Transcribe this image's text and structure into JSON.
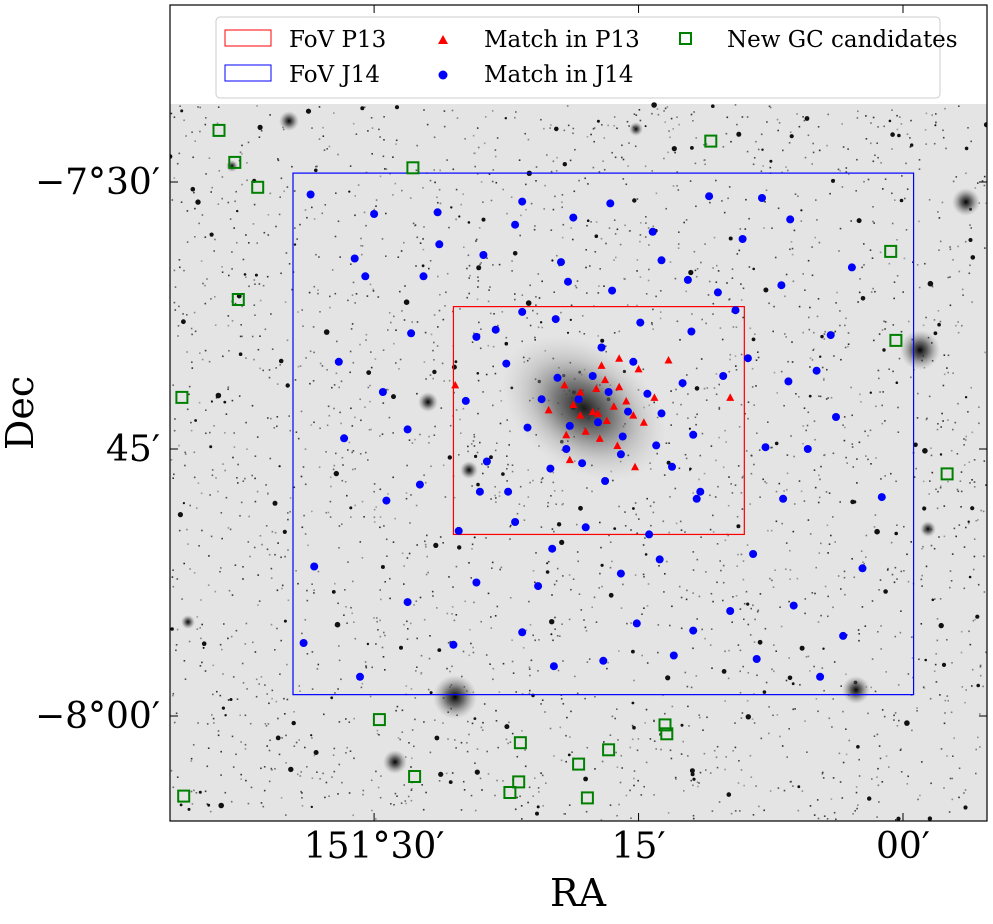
{
  "chart_data": {
    "type": "scatter",
    "title": "",
    "xlabel": "RA",
    "ylabel": "Dec",
    "x_axis": {
      "unit": "arcmin of RA",
      "inverted": true,
      "ticks": [
        {
          "value": 30,
          "label": "151°30′"
        },
        {
          "value": 15,
          "label": "15′"
        },
        {
          "value": 0,
          "label": "00′"
        }
      ]
    },
    "y_axis": {
      "unit": "arcmin of Dec",
      "ticks": [
        {
          "value": -30,
          "label": "−7°30′"
        },
        {
          "value": -45,
          "label": "45′"
        },
        {
          "value": -60,
          "label": "−8°00′"
        }
      ]
    },
    "background": "grayscale sky image (inverted)",
    "grid": false,
    "legend": {
      "placement": "top",
      "entries": [
        {
          "label": "FoV P13",
          "marker": "rectangle",
          "color": "#ff0000"
        },
        {
          "label": "FoV J14",
          "marker": "rectangle",
          "color": "#0000ff"
        },
        {
          "label": "Match in P13",
          "marker": "triangle",
          "color": "#ff0000"
        },
        {
          "label": "Match in J14",
          "marker": "circle",
          "color": "#0000ff"
        },
        {
          "label": "New GC candidates",
          "marker": "open-square",
          "color": "#008000"
        }
      ]
    },
    "fov": [
      {
        "name": "FoV P13",
        "color": "#ff0000",
        "ra": [
          25.5,
          9.0
        ],
        "dec": [
          -37.0,
          -49.8
        ]
      },
      {
        "name": "FoV J14",
        "color": "#0000ff",
        "ra": [
          34.6,
          -0.6
        ],
        "dec": [
          -29.5,
          -58.8
        ]
      }
    ],
    "series": [
      {
        "name": "New GC candidates",
        "color": "#008000",
        "marker": "open-square",
        "points": [
          [
            38.8,
            -27.1
          ],
          [
            37.9,
            -28.9
          ],
          [
            36.6,
            -30.3
          ],
          [
            27.8,
            -29.2
          ],
          [
            10.9,
            -27.7
          ],
          [
            0.7,
            -33.9
          ],
          [
            0.4,
            -38.9
          ],
          [
            37.7,
            -36.6
          ],
          [
            40.9,
            -42.1
          ],
          [
            -2.5,
            -46.4
          ],
          [
            29.7,
            -60.2
          ],
          [
            27.7,
            -63.4
          ],
          [
            21.7,
            -61.5
          ],
          [
            21.8,
            -63.7
          ],
          [
            22.3,
            -64.3
          ],
          [
            17.9,
            -64.6
          ],
          [
            18.4,
            -62.7
          ],
          [
            16.7,
            -61.9
          ],
          [
            13.4,
            -61.0
          ],
          [
            13.5,
            -60.5
          ],
          [
            40.8,
            -64.5
          ]
        ]
      },
      {
        "name": "Match in P13",
        "color": "#ff0000",
        "marker": "triangle",
        "points": [
          [
            17.1,
            -40.3
          ],
          [
            16.1,
            -39.9
          ],
          [
            19.2,
            -41.4
          ],
          [
            18.3,
            -41.8
          ],
          [
            17.4,
            -41.6
          ],
          [
            16.1,
            -41.5
          ],
          [
            15.7,
            -42.3
          ],
          [
            17.6,
            -42.9
          ],
          [
            18.3,
            -43.1
          ],
          [
            16.8,
            -43.4
          ],
          [
            19.1,
            -44.2
          ],
          [
            14.1,
            -42.1
          ],
          [
            9.8,
            -42.1
          ],
          [
            25.4,
            -41.4
          ],
          [
            15.0,
            -40.5
          ],
          [
            18.7,
            -42.5
          ],
          [
            16.4,
            -42.6
          ],
          [
            17.2,
            -44.4
          ],
          [
            16.2,
            -44.8
          ],
          [
            18.9,
            -45.6
          ],
          [
            15.2,
            -46.0
          ],
          [
            17.3,
            -43.0
          ],
          [
            14.7,
            -43.5
          ],
          [
            20.1,
            -42.8
          ],
          [
            13.3,
            -40.0
          ],
          [
            16.9,
            -41.1
          ],
          [
            15.3,
            -43.1
          ],
          [
            18.0,
            -44.0
          ]
        ]
      },
      {
        "name": "Match in J14",
        "color": "#0000ff",
        "marker": "circle",
        "points": [
          [
            21.6,
            -31.1
          ],
          [
            22.0,
            -32.4
          ],
          [
            19.4,
            -34.5
          ],
          [
            16.6,
            -31.2
          ],
          [
            14.2,
            -32.8
          ],
          [
            11.0,
            -30.8
          ],
          [
            9.1,
            -33.2
          ],
          [
            6.9,
            -35.8
          ],
          [
            4.1,
            -38.6
          ],
          [
            26.4,
            -31.7
          ],
          [
            30.5,
            -35.3
          ],
          [
            33.6,
            -30.7
          ],
          [
            31.1,
            -34.3
          ],
          [
            6.4,
            -32.1
          ],
          [
            12.2,
            -35.5
          ],
          [
            9.5,
            -37.2
          ],
          [
            27.9,
            -38.5
          ],
          [
            24.2,
            -38.7
          ],
          [
            21.6,
            -37.3
          ],
          [
            19.0,
            -35.6
          ],
          [
            16.5,
            -36.1
          ],
          [
            8.8,
            -39.9
          ],
          [
            6.5,
            -41.2
          ],
          [
            3.8,
            -43.2
          ],
          [
            5.4,
            -45.0
          ],
          [
            31.7,
            -44.4
          ],
          [
            27.4,
            -47.0
          ],
          [
            24.0,
            -47.4
          ],
          [
            22.0,
            -49.1
          ],
          [
            18.0,
            -49.4
          ],
          [
            14.4,
            -49.8
          ],
          [
            11.7,
            -47.8
          ],
          [
            8.5,
            -50.9
          ],
          [
            6.2,
            -53.8
          ],
          [
            3.4,
            -55.5
          ],
          [
            33.4,
            -51.6
          ],
          [
            28.1,
            -53.6
          ],
          [
            24.2,
            -52.5
          ],
          [
            20.7,
            -52.7
          ],
          [
            16.0,
            -52.0
          ],
          [
            11.9,
            -55.2
          ],
          [
            9.8,
            -54.1
          ],
          [
            25.5,
            -56.0
          ],
          [
            21.6,
            -55.3
          ],
          [
            17.0,
            -56.9
          ],
          [
            13.0,
            -56.6
          ],
          [
            30.8,
            -57.8
          ],
          [
            19.8,
            -57.2
          ],
          [
            15.1,
            -54.8
          ],
          [
            2.3,
            -51.7
          ],
          [
            34.0,
            -55.9
          ],
          [
            1.2,
            -47.7
          ],
          [
            17.6,
            -40.9
          ],
          [
            16.7,
            -41.8
          ],
          [
            18.4,
            -42.2
          ],
          [
            15.6,
            -42.9
          ],
          [
            19.6,
            -41.0
          ],
          [
            14.5,
            -41.9
          ],
          [
            17.3,
            -43.5
          ],
          [
            15.9,
            -44.3
          ],
          [
            18.9,
            -43.7
          ],
          [
            13.7,
            -43.0
          ],
          [
            20.5,
            -42.2
          ],
          [
            17.1,
            -39.3
          ],
          [
            16.0,
            -45.3
          ],
          [
            19.1,
            -45.0
          ],
          [
            14.0,
            -44.8
          ],
          [
            21.3,
            -43.8
          ],
          [
            12.5,
            -41.3
          ],
          [
            15.3,
            -40.1
          ],
          [
            18.2,
            -45.8
          ],
          [
            16.9,
            -46.8
          ],
          [
            20.0,
            -46.1
          ],
          [
            13.1,
            -46.0
          ],
          [
            22.5,
            -40.2
          ],
          [
            11.9,
            -44.2
          ],
          [
            23.6,
            -45.7
          ],
          [
            10.2,
            -40.9
          ],
          [
            24.8,
            -42.3
          ],
          [
            14.9,
            -37.9
          ],
          [
            19.7,
            -37.7
          ],
          [
            12.0,
            -38.4
          ],
          [
            23.1,
            -38.3
          ],
          [
            11.5,
            -47.4
          ],
          [
            22.4,
            -47.4
          ],
          [
            29.5,
            -41.8
          ],
          [
            28.1,
            -43.9
          ],
          [
            7.8,
            -44.9
          ],
          [
            4.9,
            -40.6
          ],
          [
            32.0,
            -40.1
          ],
          [
            27.2,
            -35.3
          ],
          [
            10.5,
            -36.2
          ],
          [
            29.3,
            -47.9
          ],
          [
            6.8,
            -47.8
          ],
          [
            25.2,
            -49.6
          ],
          [
            13.8,
            -51.2
          ],
          [
            19.9,
            -50.6
          ],
          [
            8.3,
            -56.8
          ],
          [
            4.7,
            -57.8
          ],
          [
            2.9,
            -34.8
          ],
          [
            23.8,
            -34.1
          ],
          [
            13.7,
            -34.4
          ],
          [
            26.3,
            -33.5
          ],
          [
            18.7,
            -32.0
          ],
          [
            8.0,
            -30.9
          ],
          [
            30.0,
            -31.8
          ]
        ]
      }
    ]
  }
}
